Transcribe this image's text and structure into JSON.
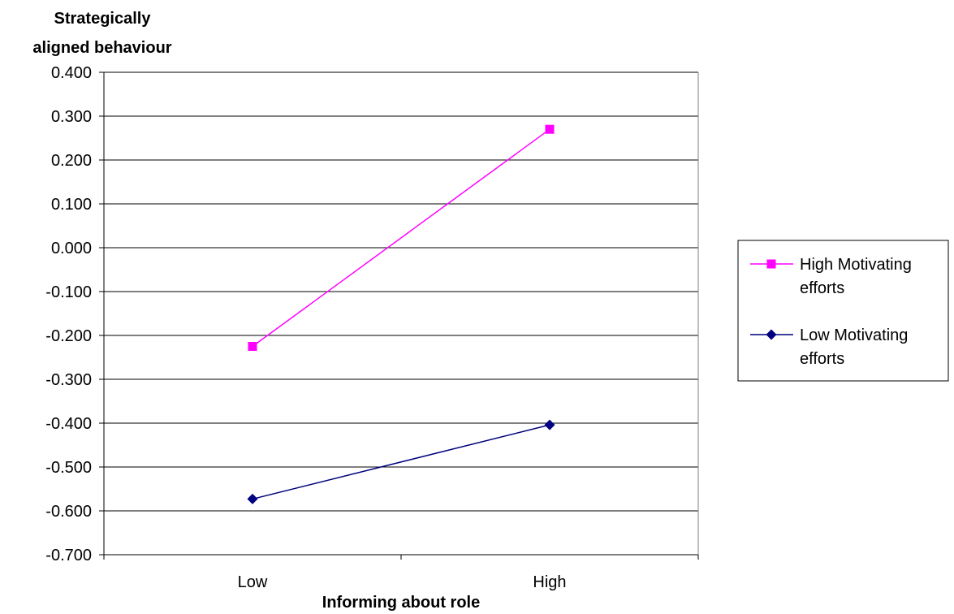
{
  "chart_data": {
    "type": "line",
    "ylabel_lines": [
      "Strategically",
      "aligned behaviour"
    ],
    "xlabel": "Informing about role",
    "categories": [
      "Low",
      "High"
    ],
    "ylim": [
      -0.7,
      0.4
    ],
    "ytick_step": 0.1,
    "yticks": [
      "0.400",
      "0.300",
      "0.200",
      "0.100",
      "0.000",
      "-0.100",
      "-0.200",
      "-0.300",
      "-0.400",
      "-0.500",
      "-0.600",
      "-0.700"
    ],
    "grid": true,
    "legend_position": "right",
    "series": [
      {
        "legend_lines": [
          "High Motivating",
          "efforts"
        ],
        "values": [
          -0.225,
          0.27
        ],
        "color": "#ff00ff",
        "marker": "square"
      },
      {
        "legend_lines": [
          "Low Motivating",
          "efforts"
        ],
        "values": [
          -0.573,
          -0.404
        ],
        "color": "#000080",
        "marker": "diamond"
      }
    ]
  }
}
